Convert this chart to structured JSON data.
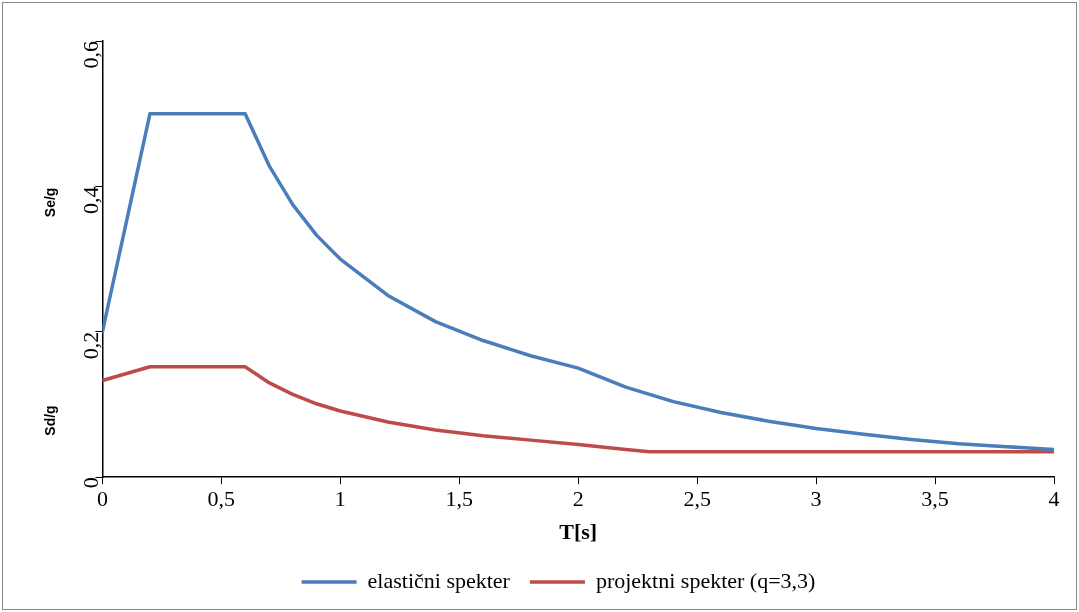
{
  "chart_data": {
    "type": "line",
    "xlabel": "T[s]",
    "ylabel": "Se/g",
    "annotations": [
      "Sd/g"
    ],
    "xlim": [
      0,
      4
    ],
    "xticks": [
      0,
      {
        "value": 0.5,
        "label": "0,5"
      },
      1,
      {
        "value": 1.5,
        "label": "1,5"
      },
      2,
      {
        "value": 2.5,
        "label": "2,5"
      },
      3,
      {
        "value": 3.5,
        "label": "3,5"
      },
      4
    ],
    "ylim": [
      0,
      0.6
    ],
    "yticks": [
      0,
      {
        "value": 0.2,
        "label": "0,2"
      },
      {
        "value": 0.4,
        "label": "0,4"
      },
      {
        "value": 0.6,
        "label": "0,6"
      }
    ],
    "grid": false,
    "legend": "bottom",
    "marker": "none",
    "line_style": "solid",
    "series": [
      {
        "name": "elastični spekter",
        "color": "#4a7ebb",
        "x": [
          0,
          0.2,
          0.6,
          0.7,
          0.8,
          0.9,
          1,
          1.2,
          1.4,
          1.6,
          1.8,
          2,
          2.2,
          2.4,
          2.6,
          2.8,
          3,
          3.2,
          3.4,
          3.6,
          3.8,
          4
        ],
        "values": [
          0.2,
          0.5,
          0.5,
          0.429,
          0.375,
          0.333,
          0.3,
          0.25,
          0.214,
          0.188,
          0.167,
          0.15,
          0.124,
          0.104,
          0.089,
          0.077,
          0.067,
          0.059,
          0.052,
          0.046,
          0.042,
          0.038
        ]
      },
      {
        "name": "projektni spekter (q=3,3)",
        "color": "#be4b48",
        "x": [
          0,
          0.2,
          0.6,
          0.7,
          0.8,
          0.9,
          1,
          1.2,
          1.4,
          1.6,
          1.8,
          2,
          2.2,
          2.3,
          4
        ],
        "values": [
          0.133,
          0.152,
          0.152,
          0.13,
          0.114,
          0.101,
          0.091,
          0.076,
          0.065,
          0.057,
          0.051,
          0.045,
          0.038,
          0.035,
          0.035
        ]
      }
    ]
  }
}
